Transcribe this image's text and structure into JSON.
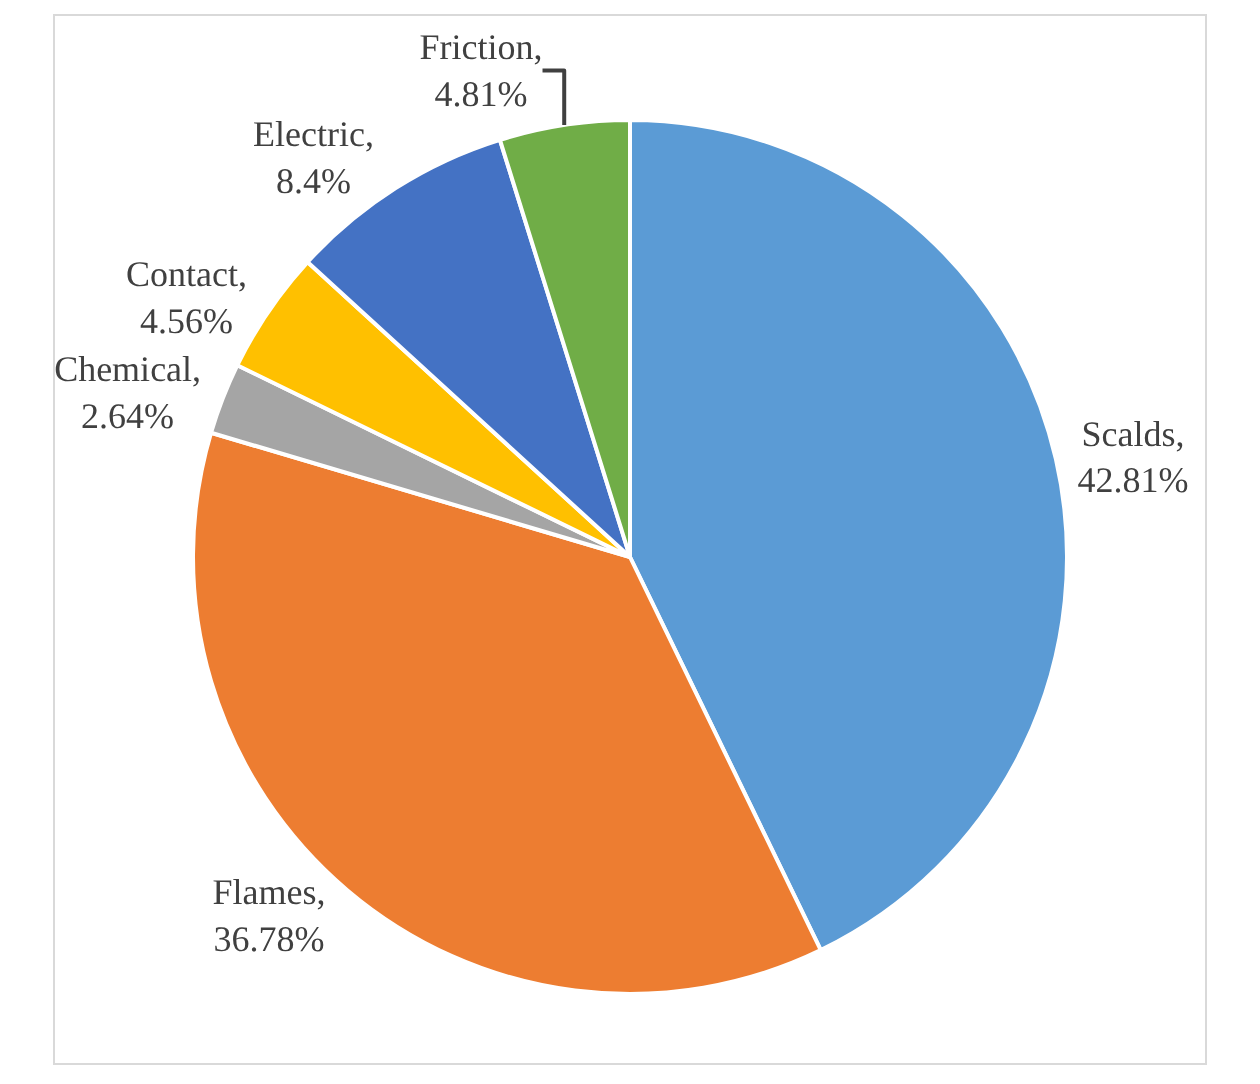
{
  "chart_data": {
    "type": "pie",
    "categories": [
      "Scalds",
      "Flames",
      "Chemical",
      "Contact",
      "Electric",
      "Friction"
    ],
    "values": [
      42.81,
      36.78,
      2.64,
      4.56,
      8.4,
      4.81
    ],
    "value_labels": [
      ",\n42.81%",
      ",\n36.78%",
      ",\n2.64%",
      ",\n4.56%",
      ",\n8.4%",
      ",\n4.81%"
    ],
    "colors": [
      "#5b9bd5",
      "#ed7d31",
      "#a5a5a5",
      "#ffc000",
      "#4472c4",
      "#70ad47"
    ],
    "legend": false
  }
}
